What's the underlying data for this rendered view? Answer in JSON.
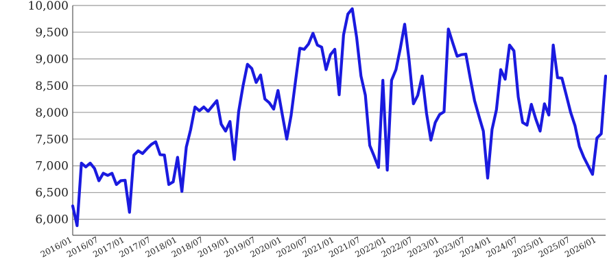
{
  "chart_data": {
    "type": "line",
    "title": "",
    "xlabel": "",
    "ylabel": "",
    "ylim": [
      5700,
      10000
    ],
    "y_ticks": [
      6000,
      6500,
      7000,
      7500,
      8000,
      8500,
      9000,
      9500,
      10000
    ],
    "y_tick_labels": [
      "6,000",
      "6,500",
      "7,000",
      "7,500",
      "8,000",
      "8,500",
      "9,000",
      "9,500",
      "10,000"
    ],
    "x_tick_labels": [
      "2016/01",
      "2016/07",
      "2017/01",
      "2017/07",
      "2018/01",
      "2018/07",
      "2019/01",
      "2019/07",
      "2020/01",
      "2020/07",
      "2021/01",
      "2021/07",
      "2022/01",
      "2022/07",
      "2023/01",
      "2023/07",
      "2024/01",
      "2024/07",
      "2025/01",
      "2025/07",
      "2026/01"
    ],
    "grid": "horizontal",
    "line_color": "#1a1adf",
    "x": [
      "2016/01",
      "2016/02",
      "2016/03",
      "2016/04",
      "2016/05",
      "2016/06",
      "2016/07",
      "2016/08",
      "2016/09",
      "2016/10",
      "2016/11",
      "2016/12",
      "2017/01",
      "2017/02",
      "2017/03",
      "2017/04",
      "2017/05",
      "2017/06",
      "2017/07",
      "2017/08",
      "2017/09",
      "2017/10",
      "2017/11",
      "2017/12",
      "2018/01",
      "2018/02",
      "2018/03",
      "2018/04",
      "2018/05",
      "2018/06",
      "2018/07",
      "2018/08",
      "2018/09",
      "2018/10",
      "2018/11",
      "2018/12",
      "2019/01",
      "2019/02",
      "2019/03",
      "2019/04",
      "2019/05",
      "2019/06",
      "2019/07",
      "2019/08",
      "2019/09",
      "2019/10",
      "2019/11",
      "2019/12",
      "2020/01",
      "2020/02",
      "2020/03",
      "2020/04",
      "2020/05",
      "2020/06",
      "2020/07",
      "2020/08",
      "2020/09",
      "2020/10",
      "2020/11",
      "2020/12",
      "2021/01",
      "2021/02",
      "2021/03",
      "2021/04",
      "2021/05",
      "2021/06",
      "2021/07",
      "2021/08",
      "2021/09",
      "2021/10",
      "2021/11",
      "2021/12",
      "2022/01",
      "2022/02",
      "2022/03",
      "2022/04",
      "2022/05",
      "2022/06",
      "2022/07",
      "2022/08",
      "2022/09",
      "2022/10",
      "2022/11",
      "2022/12",
      "2023/01",
      "2023/02",
      "2023/03",
      "2023/04",
      "2023/05",
      "2023/06",
      "2023/07",
      "2023/08",
      "2023/09",
      "2023/10",
      "2023/11",
      "2023/12",
      "2024/01",
      "2024/02",
      "2024/03",
      "2024/04",
      "2024/05",
      "2024/06",
      "2024/07",
      "2024/08",
      "2024/09",
      "2024/10",
      "2024/11",
      "2024/12",
      "2025/01",
      "2025/02",
      "2025/03",
      "2025/04",
      "2025/05",
      "2025/06",
      "2025/07",
      "2025/08",
      "2025/09",
      "2025/10",
      "2025/11",
      "2025/12",
      "2026/01",
      "2026/02",
      "2026/03"
    ],
    "series": [
      {
        "values": [
          6250,
          5880,
          7050,
          6980,
          7050,
          6950,
          6720,
          6860,
          6820,
          6860,
          6650,
          6720,
          6730,
          6130,
          7200,
          7280,
          7230,
          7320,
          7400,
          7450,
          7210,
          7200,
          6650,
          6700,
          7160,
          6520,
          7350,
          7680,
          8100,
          8030,
          8100,
          8020,
          8120,
          8220,
          7780,
          7650,
          7830,
          7120,
          8020,
          8500,
          8900,
          8820,
          8560,
          8700,
          8250,
          8180,
          8060,
          8410,
          7950,
          7500,
          7940,
          8580,
          9200,
          9180,
          9280,
          9480,
          9260,
          9220,
          8800,
          9080,
          9180,
          8330,
          9450,
          9840,
          9940,
          9400,
          8680,
          8320,
          7380,
          7180,
          6970,
          8600,
          6920,
          8600,
          8800,
          9200,
          9650,
          8980,
          8160,
          8320,
          8680,
          7980,
          7480,
          7810,
          7960,
          8010,
          9560,
          9300,
          9050,
          9080,
          9090,
          8640,
          8220,
          7930,
          7650,
          6770,
          7680,
          8050,
          8800,
          8620,
          9260,
          9150,
          8290,
          7810,
          7760,
          8150,
          7880,
          7650,
          8160,
          7950,
          9260,
          8650,
          8640,
          8320,
          8000,
          7750,
          7360,
          7160,
          7000,
          6840,
          7520,
          7600,
          8680
        ]
      }
    ]
  }
}
